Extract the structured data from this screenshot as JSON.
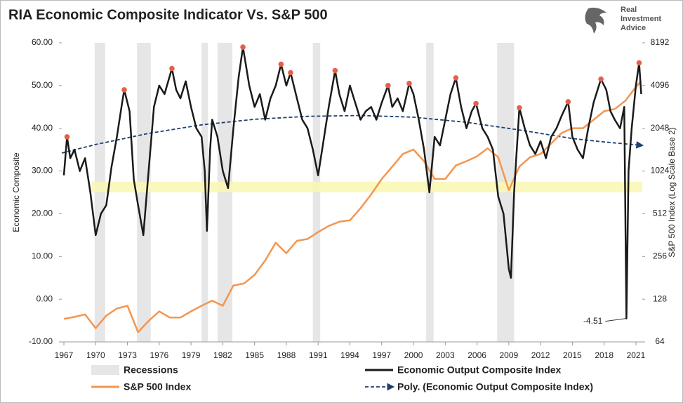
{
  "chart_data": {
    "type": "line",
    "title": "RIA Economic Composite Indicator Vs. S&P 500",
    "y_label": "Economic Composite",
    "y2_label": "S&P 500 Index (Log Scale Base 2)",
    "xlim": [
      1966.8,
      2021.6
    ],
    "xticks": [
      1967,
      1970,
      1973,
      1976,
      1979,
      1982,
      1985,
      1988,
      1991,
      1994,
      1997,
      2000,
      2003,
      2006,
      2009,
      2012,
      2015,
      2018,
      2021
    ],
    "ylim": [
      -10,
      60
    ],
    "yticks": [
      {
        "value": -10,
        "label": "-10.00"
      },
      {
        "value": 0,
        "label": "0.00"
      },
      {
        "value": 10,
        "label": "10.00"
      },
      {
        "value": 20,
        "label": "20.00"
      },
      {
        "value": 30,
        "label": "30.00"
      },
      {
        "value": 40,
        "label": "40.00"
      },
      {
        "value": 50,
        "label": "50.00"
      },
      {
        "value": 60,
        "label": "60.00"
      }
    ],
    "y2lim": [
      64,
      8192
    ],
    "y2ticks": [
      64,
      128,
      256,
      512,
      1024,
      2048,
      4096,
      8192
    ],
    "y2_log_base": 2,
    "recessions": {
      "name": "Recessions",
      "color": "#e6e6e6",
      "ranges": [
        [
          1969.9,
          1970.9
        ],
        [
          1973.9,
          1975.2
        ],
        [
          1980.0,
          1980.6
        ],
        [
          1981.5,
          1982.9
        ],
        [
          1990.5,
          1991.2
        ],
        [
          2001.2,
          2001.9
        ],
        [
          2007.9,
          2009.5
        ]
      ]
    },
    "highlight_band": {
      "ylim": [
        25,
        27.5
      ],
      "xlim": [
        1969.6,
        2021.6
      ],
      "color": "#f9f7b0"
    },
    "series": [
      {
        "name": "Economic Output Composite Index",
        "color": "#1a1a1a",
        "style": "solid",
        "x": [
          1967.0,
          1967.3,
          1967.6,
          1968.0,
          1968.5,
          1969.0,
          1969.5,
          1970.0,
          1970.5,
          1971.0,
          1971.5,
          1972.0,
          1972.5,
          1972.7,
          1973.2,
          1973.6,
          1974.0,
          1974.5,
          1975.0,
          1975.5,
          1976.0,
          1976.5,
          1977.2,
          1977.6,
          1978.0,
          1978.5,
          1979.0,
          1979.5,
          1980.0,
          1980.3,
          1980.5,
          1980.8,
          1981.0,
          1981.5,
          1982.0,
          1982.5,
          1983.0,
          1983.5,
          1983.9,
          1984.5,
          1985.0,
          1985.5,
          1986.0,
          1986.5,
          1987.0,
          1987.5,
          1988.0,
          1988.4,
          1989.0,
          1989.5,
          1990.0,
          1990.5,
          1991.0,
          1991.5,
          1992.0,
          1992.6,
          1993.0,
          1993.5,
          1994.0,
          1994.5,
          1995.0,
          1995.5,
          1996.0,
          1996.5,
          1997.0,
          1997.6,
          1998.0,
          1998.5,
          1999.0,
          1999.6,
          2000.0,
          2000.5,
          2001.0,
          2001.5,
          2002.0,
          2002.5,
          2003.0,
          2003.5,
          2004.0,
          2004.5,
          2005.0,
          2005.5,
          2005.9,
          2006.5,
          2007.0,
          2007.5,
          2008.0,
          2008.5,
          2009.0,
          2009.2,
          2009.5,
          2010.0,
          2010.5,
          2011.0,
          2011.5,
          2012.0,
          2012.5,
          2013.0,
          2013.5,
          2014.0,
          2014.6,
          2015.0,
          2015.5,
          2016.0,
          2016.5,
          2017.0,
          2017.7,
          2018.2,
          2018.6,
          2019.0,
          2019.5,
          2019.9,
          2020.1,
          2020.3,
          2020.6,
          2021.0,
          2021.3,
          2021.5
        ],
        "values": [
          29,
          38,
          33,
          35,
          30,
          33,
          25,
          15,
          20,
          22,
          31,
          38,
          46,
          49,
          44,
          28,
          22,
          15,
          30,
          45,
          50,
          48,
          54,
          49,
          47,
          51,
          45,
          40,
          38,
          30,
          16,
          35,
          42,
          38,
          30,
          26,
          40,
          52,
          59,
          50,
          45,
          48,
          42,
          47,
          50,
          55,
          50,
          53,
          47,
          42,
          40,
          35,
          29,
          37,
          45,
          53.5,
          48,
          44,
          50,
          46,
          42,
          44,
          45,
          42,
          46,
          50,
          45,
          47,
          44,
          50.5,
          48,
          42,
          35,
          25,
          38,
          36,
          42,
          48,
          51.8,
          45,
          40,
          44,
          45.8,
          40,
          38,
          35,
          24,
          20,
          7,
          5,
          25,
          44.8,
          40,
          36,
          34,
          37,
          33,
          38,
          40,
          43,
          46.2,
          38,
          35,
          33,
          40,
          46,
          51.5,
          49,
          44,
          42,
          40,
          45,
          -4.51,
          30,
          40,
          50,
          55.3,
          48
        ]
      },
      {
        "name": "S&P 500 Index",
        "color": "#f4964f",
        "style": "solid",
        "axis": "y2",
        "x": [
          1967,
          1968,
          1969,
          1970,
          1971,
          1972,
          1973,
          1974,
          1975,
          1976,
          1977,
          1978,
          1979,
          1980,
          1981,
          1982,
          1983,
          1984,
          1985,
          1986,
          1987,
          1988,
          1989,
          1990,
          1991,
          1992,
          1993,
          1994,
          1995,
          1996,
          1997,
          1998,
          1999,
          2000,
          2001,
          2002,
          2003,
          2004,
          2005,
          2006,
          2007,
          2008,
          2009,
          2010,
          2011,
          2012,
          2013,
          2014,
          2015,
          2016,
          2017,
          2018,
          2019,
          2020,
          2021,
          2021.5
        ],
        "values": [
          93,
          96,
          100,
          80,
          98,
          110,
          115,
          75,
          90,
          105,
          95,
          95,
          105,
          115,
          125,
          115,
          160,
          165,
          190,
          240,
          320,
          270,
          330,
          340,
          380,
          420,
          450,
          460,
          560,
          700,
          900,
          1100,
          1350,
          1450,
          1200,
          900,
          900,
          1120,
          1200,
          1300,
          1480,
          1280,
          750,
          1100,
          1280,
          1350,
          1600,
          1900,
          2050,
          2050,
          2350,
          2700,
          2800,
          3200,
          4000,
          4400
        ]
      },
      {
        "name": "Poly. (Economic Output Composite Index)",
        "color": "#1f3f6e",
        "style": "dashed",
        "x": [
          1966.8,
          1970,
          1975,
          1980,
          1985,
          1990,
          1995,
          2000,
          2005,
          2010,
          2015,
          2018,
          2021.6
        ],
        "values": [
          34.2,
          36.2,
          38.8,
          40.8,
          42.1,
          42.8,
          43.0,
          42.6,
          41.4,
          39.6,
          37.6,
          36.8,
          36.0
        ]
      }
    ],
    "peaks": {
      "color": "#e5604a",
      "x": [
        1967.3,
        1972.7,
        1977.2,
        1983.9,
        1987.5,
        1988.4,
        1992.6,
        1997.6,
        1999.6,
        2004.0,
        2005.9,
        2010.0,
        2014.6,
        2017.7,
        2021.3
      ],
      "values": [
        38,
        49,
        54,
        59,
        55,
        53,
        53.5,
        50,
        50.5,
        51.8,
        45.8,
        44.8,
        46.2,
        51.5,
        55.3
      ]
    },
    "annotations": [
      {
        "text": "-4.51",
        "x": 2020.1,
        "y": -4.51
      }
    ]
  },
  "logo": {
    "lines": [
      "Real",
      "Investment",
      "Advice"
    ]
  }
}
